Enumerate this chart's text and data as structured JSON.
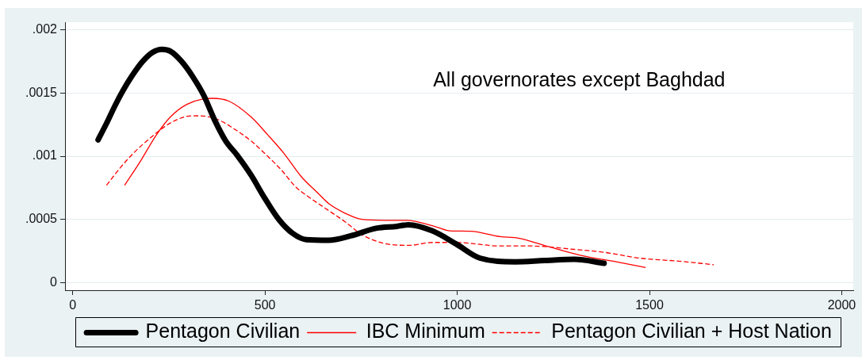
{
  "chart_data": {
    "type": "line",
    "annotations": [
      "All governorates except Baghdad"
    ],
    "xlim": [
      -20,
      2030
    ],
    "xticks": [
      0,
      500,
      1000,
      1500,
      2000
    ],
    "ylim": [
      -6e-05,
      0.00206
    ],
    "yticks": [
      0,
      {
        "value": 0.0005,
        "label": ".0005"
      },
      {
        "value": 0.001,
        "label": ".001"
      },
      {
        "value": 0.0015,
        "label": ".0015"
      },
      {
        "value": 0.002,
        "label": ".002"
      }
    ],
    "grid": "y",
    "legend": "bottom",
    "marker": "none",
    "series": [
      {
        "name": "Pentagon Civilian",
        "color": "#000000",
        "line_style": "solid",
        "x": [
          66,
          88,
          110,
          131,
          153,
          182,
          207,
          232,
          254,
          283,
          312,
          341,
          370,
          398,
          427,
          464,
          499,
          536,
          572,
          608,
          666,
          723,
          789,
          843,
          873,
          935,
          997,
          1059,
          1151,
          1227,
          1305,
          1382
        ],
        "values": [
          0.00113,
          0.00126,
          0.0014,
          0.00152,
          0.00163,
          0.00175,
          0.00182,
          0.001845,
          0.00183,
          0.00175,
          0.00163,
          0.00148,
          0.00128,
          0.00112,
          0.00101,
          0.00085,
          0.00067,
          0.0005,
          0.00039,
          0.00034,
          0.000335,
          0.00037,
          0.00043,
          0.000445,
          0.000458,
          0.00041,
          0.000306,
          0.000194,
          0.000165,
          0.000175,
          0.000184,
          0.000153
        ]
      },
      {
        "name": "IBC Minimum",
        "color": "#ff0000",
        "line_style": "solid",
        "x": [
          135,
          178,
          218,
          254,
          297,
          363,
          406,
          464,
          507,
          550,
          594,
          637,
          666,
          709,
          752,
          810,
          868,
          946,
          981,
          1035,
          1112,
          1159,
          1227,
          1320,
          1421,
          1490
        ],
        "values": [
          0.00077,
          0.00097,
          0.00117,
          0.00131,
          0.00141,
          0.001458,
          0.001436,
          0.00131,
          0.00117,
          0.00102,
          0.00084,
          0.00071,
          0.000625,
          0.000548,
          0.0005,
          0.000493,
          0.000493,
          0.00044,
          0.00041,
          0.000406,
          0.000364,
          0.000352,
          0.000294,
          0.000217,
          0.00016,
          0.000119
        ]
      },
      {
        "name": "Pentagon Civilian + Host Nation",
        "color": "#ff0000",
        "line_style": "dashed",
        "x": [
          88,
          124,
          160,
          204,
          247,
          290,
          326,
          377,
          413,
          464,
          507,
          543,
          579,
          608,
          651,
          709,
          752,
          810,
          875,
          935,
          997,
          1112,
          1189,
          1305,
          1382,
          1474,
          1575,
          1667
        ],
        "values": [
          0.00077,
          0.00091,
          0.00103,
          0.00115,
          0.00125,
          0.00131,
          0.00132,
          0.00129,
          0.00123,
          0.00112,
          0.001,
          0.00089,
          0.00076,
          0.00069,
          0.0006,
          0.00048,
          0.00038,
          0.00031,
          0.000295,
          0.000318,
          0.000318,
          0.00029,
          0.00029,
          0.000263,
          0.00024,
          0.000194,
          0.00017,
          0.000142
        ]
      }
    ]
  }
}
